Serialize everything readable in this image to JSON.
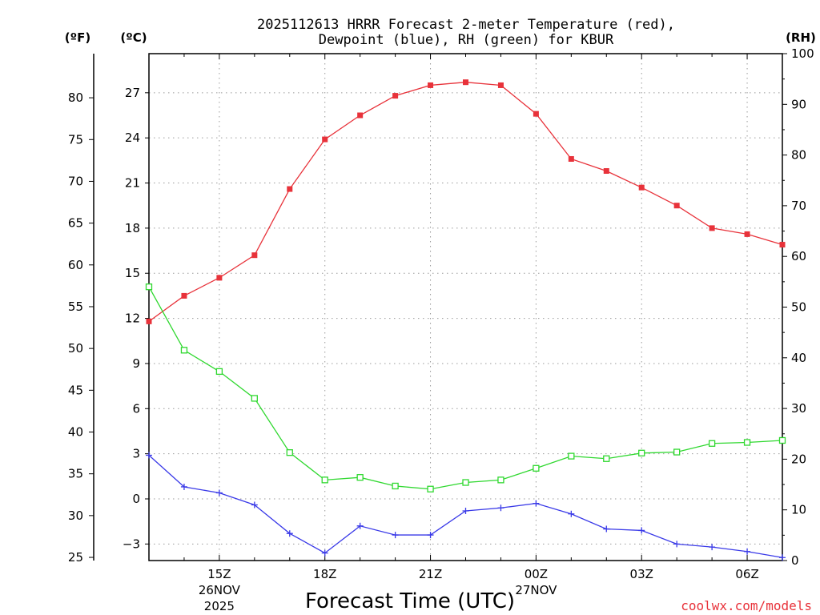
{
  "title_line1": "2025112613 HRRR Forecast 2-meter Temperature (red),",
  "title_line2": "Dewpoint (blue), RH (green) for KBUR",
  "units": {
    "f": "(ºF)",
    "c": "(ºC)",
    "rh": "(RH)"
  },
  "credit": "coolwx.com/models",
  "chart_data": {
    "type": "line",
    "title": "2025112613 HRRR Forecast 2-meter Temperature (red), Dewpoint (blue), RH (green) for KBUR",
    "xlabel": "Forecast Time (UTC)",
    "x_hours": [
      13,
      14,
      15,
      16,
      17,
      18,
      19,
      20,
      21,
      22,
      23,
      24,
      25,
      26,
      27,
      28,
      29,
      30,
      31
    ],
    "xlim": [
      13,
      31
    ],
    "x_ticks": [
      {
        "hour": 15,
        "label": "15Z",
        "sub1": "26NOV",
        "sub2": "2025"
      },
      {
        "hour": 18,
        "label": "18Z",
        "sub1": "",
        "sub2": ""
      },
      {
        "hour": 21,
        "label": "21Z",
        "sub1": "",
        "sub2": ""
      },
      {
        "hour": 24,
        "label": "00Z",
        "sub1": "27NOV",
        "sub2": ""
      },
      {
        "hour": 27,
        "label": "03Z",
        "sub1": "",
        "sub2": ""
      },
      {
        "hour": 30,
        "label": "06Z",
        "sub1": "",
        "sub2": ""
      }
    ],
    "y_celsius": {
      "label": "(ºC)",
      "lim": [
        -4.1,
        29.6
      ],
      "ticks": [
        "-3",
        "0",
        "3",
        "6",
        "9",
        "12",
        "15",
        "18",
        "21",
        "24",
        "27"
      ]
    },
    "y_fahrenheit": {
      "label": "(ºF)",
      "ticks": [
        "25",
        "30",
        "35",
        "40",
        "45",
        "50",
        "55",
        "60",
        "65",
        "70",
        "75",
        "80"
      ]
    },
    "y_rh": {
      "label": "(RH)",
      "lim": [
        0,
        100
      ],
      "ticks": [
        "0",
        "10",
        "20",
        "30",
        "40",
        "50",
        "60",
        "70",
        "80",
        "90",
        "100"
      ]
    },
    "grid": true,
    "series": [
      {
        "name": "Temperature",
        "axis": "celsius",
        "color": "#e8323a",
        "marker": "filled-square",
        "values": [
          11.8,
          13.5,
          14.7,
          16.2,
          20.6,
          23.9,
          25.5,
          26.8,
          27.5,
          27.7,
          27.5,
          25.6,
          22.6,
          21.8,
          20.7,
          19.5,
          18.0,
          17.6,
          16.9
        ]
      },
      {
        "name": "Dewpoint",
        "axis": "celsius",
        "color": "#3a3ae8",
        "marker": "plus",
        "values": [
          2.9,
          0.8,
          0.4,
          -0.4,
          -2.3,
          -3.6,
          -1.8,
          -2.4,
          -2.4,
          -0.8,
          -0.6,
          -0.3,
          -1.0,
          -2.0,
          -2.1,
          -3.0,
          -3.2,
          -3.5,
          -3.9
        ]
      },
      {
        "name": "RH",
        "axis": "rh",
        "color": "#2fd82f",
        "marker": "open-square",
        "values": [
          54,
          41.5,
          37.3,
          32,
          21.3,
          15.9,
          16.4,
          14.7,
          14.1,
          15.4,
          15.9,
          18.2,
          20.6,
          20.1,
          21.2,
          21.4,
          23.1,
          23.3,
          23.7
        ]
      }
    ]
  }
}
